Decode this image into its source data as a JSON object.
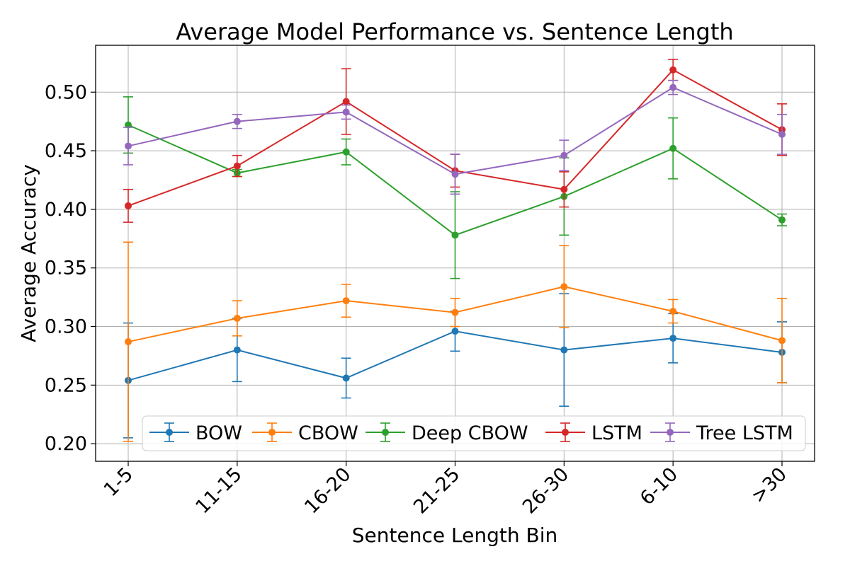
{
  "chart_data": {
    "type": "line",
    "title": "Average Model Performance vs. Sentence Length",
    "xlabel": "Sentence Length Bin",
    "ylabel": "Average Accuracy",
    "categories": [
      "1-5",
      "11-15",
      "16-20",
      "21-25",
      "26-30",
      "6-10",
      ">30"
    ],
    "ylim": [
      0.185,
      0.54
    ],
    "yticks": [
      0.2,
      0.25,
      0.3,
      0.35,
      0.4,
      0.45,
      0.5
    ],
    "ytick_labels": [
      "0.20",
      "0.25",
      "0.30",
      "0.35",
      "0.40",
      "0.45",
      "0.50"
    ],
    "grid": true,
    "legend_position": "bottom",
    "series": [
      {
        "name": "BOW",
        "color": "#1f77b4",
        "values": [
          0.254,
          0.28,
          0.256,
          0.296,
          0.28,
          0.29,
          0.278
        ],
        "errors": [
          0.049,
          0.027,
          0.017,
          0.017,
          0.048,
          0.021,
          0.026
        ]
      },
      {
        "name": "CBOW",
        "color": "#ff7f0e",
        "values": [
          0.287,
          0.307,
          0.322,
          0.312,
          0.334,
          0.313,
          0.288
        ],
        "errors": [
          0.085,
          0.015,
          0.014,
          0.012,
          0.035,
          0.01,
          0.036
        ]
      },
      {
        "name": "Deep CBOW",
        "color": "#2ca02c",
        "values": [
          0.472,
          0.431,
          0.449,
          0.378,
          0.411,
          0.452,
          0.391
        ],
        "errors": [
          0.024,
          0.003,
          0.011,
          0.037,
          0.033,
          0.026,
          0.005
        ]
      },
      {
        "name": "LSTM",
        "color": "#d62728",
        "values": [
          0.403,
          0.437,
          0.492,
          0.433,
          0.417,
          0.519,
          0.468
        ],
        "errors": [
          0.014,
          0.009,
          0.028,
          0.014,
          0.015,
          0.009,
          0.022
        ]
      },
      {
        "name": "Tree LSTM",
        "color": "#9467bd",
        "values": [
          0.454,
          0.475,
          0.483,
          0.43,
          0.446,
          0.504,
          0.464
        ],
        "errors": [
          0.016,
          0.006,
          0.006,
          0.017,
          0.013,
          0.006,
          0.017
        ]
      }
    ]
  }
}
